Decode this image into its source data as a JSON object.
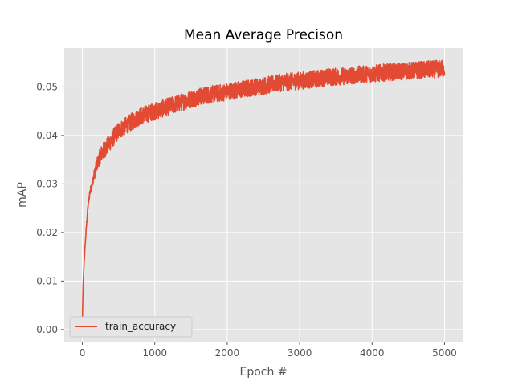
{
  "chart_data": {
    "type": "line",
    "title": "Mean Average Precison",
    "xlabel": "Epoch #",
    "ylabel": "mAP",
    "xlim": [
      -250,
      5250
    ],
    "ylim": [
      -0.0025,
      0.058
    ],
    "xticks": [
      0,
      1000,
      2000,
      3000,
      4000,
      5000
    ],
    "xtick_labels": [
      "0",
      "1000",
      "2000",
      "3000",
      "4000",
      "5000"
    ],
    "yticks": [
      0.0,
      0.01,
      0.02,
      0.03,
      0.04,
      0.05
    ],
    "ytick_labels": [
      "0.00",
      "0.01",
      "0.02",
      "0.03",
      "0.04",
      "0.05"
    ],
    "grid": true,
    "legend_position": "lower-left",
    "series": [
      {
        "name": "train_accuracy",
        "color": "#e24a33",
        "x": [
          0,
          10,
          25,
          50,
          75,
          100,
          150,
          200,
          250,
          300,
          400,
          500,
          600,
          700,
          800,
          900,
          1000,
          1200,
          1400,
          1600,
          1800,
          2000,
          2200,
          2400,
          2600,
          2800,
          3000,
          3200,
          3400,
          3600,
          3800,
          4000,
          4200,
          4400,
          4600,
          4800,
          5000
        ],
        "values": [
          0.002,
          0.009,
          0.014,
          0.02,
          0.025,
          0.028,
          0.031,
          0.034,
          0.036,
          0.037,
          0.039,
          0.041,
          0.042,
          0.043,
          0.044,
          0.0445,
          0.045,
          0.046,
          0.047,
          0.048,
          0.0485,
          0.049,
          0.0495,
          0.05,
          0.0505,
          0.051,
          0.0513,
          0.0516,
          0.052,
          0.0522,
          0.0525,
          0.0527,
          0.053,
          0.0532,
          0.0534,
          0.0536,
          0.0538
        ],
        "noise_amplitude": 0.0018
      }
    ]
  },
  "legend": {
    "items": [
      {
        "label": "train_accuracy",
        "color": "#e24a33"
      }
    ]
  },
  "colors": {
    "axes_background": "#e5e5e5",
    "grid": "#ffffff",
    "line": "#e24a33",
    "text": "#555555"
  }
}
